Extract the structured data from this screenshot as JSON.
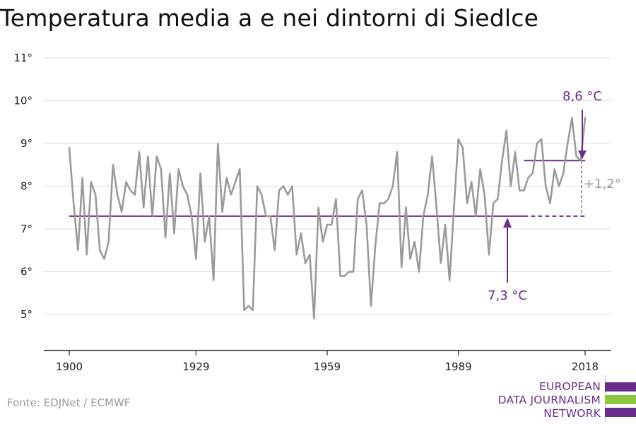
{
  "title": "Temperatura media a e nei dintorni di Siedlce",
  "source": "Fonte: EDJNet / ECMWF",
  "logo": {
    "lines": [
      "EUROPEAN",
      "DATA JOURNALISM",
      "NETWORK"
    ],
    "colors": {
      "purple": "#6b2d8b",
      "green": "#8dc63f"
    }
  },
  "colors": {
    "series": "#9b9b9b",
    "reference": "#6b2d8b",
    "annotation_purple": "#6b2d8b",
    "annotation_gray": "#9b9b9b",
    "grid": "#dddddd",
    "axis": "#222222"
  },
  "chart_data": {
    "type": "line",
    "title": "Temperatura media a e nei dintorni di Siedlce",
    "xlabel": "",
    "ylabel": "",
    "x_ticks": [
      1900,
      1929,
      1959,
      1989,
      2018
    ],
    "y_ticks": [
      5,
      6,
      7,
      8,
      9,
      10,
      11
    ],
    "y_tick_suffix": "°",
    "ylim": [
      4.2,
      11.3
    ],
    "xlim": [
      1900,
      2018
    ],
    "grid": "horizontal",
    "series": [
      {
        "x": [
          1900,
          1901,
          1902,
          1903,
          1904,
          1905,
          1906,
          1907,
          1908,
          1909,
          1910,
          1911,
          1912,
          1913,
          1914,
          1915,
          1916,
          1917,
          1918,
          1919,
          1920,
          1921,
          1922,
          1923,
          1924,
          1925,
          1926,
          1927,
          1928,
          1929,
          1930,
          1931,
          1932,
          1933,
          1934,
          1935,
          1936,
          1937,
          1938,
          1939,
          1940,
          1941,
          1942,
          1943,
          1944,
          1945,
          1946,
          1947,
          1948,
          1949,
          1950,
          1951,
          1952,
          1953,
          1954,
          1955,
          1956,
          1957,
          1958,
          1959,
          1960,
          1961,
          1962,
          1963,
          1964,
          1965,
          1966,
          1967,
          1968,
          1969,
          1970,
          1971,
          1972,
          1973,
          1974,
          1975,
          1976,
          1977,
          1978,
          1979,
          1980,
          1981,
          1982,
          1983,
          1984,
          1985,
          1986,
          1987,
          1988,
          1989,
          1990,
          1991,
          1992,
          1993,
          1994,
          1995,
          1996,
          1997,
          1998,
          1999,
          2000,
          2001,
          2002,
          2003,
          2004,
          2005,
          2006,
          2007,
          2008,
          2009,
          2010,
          2011,
          2012,
          2013,
          2014,
          2015,
          2016,
          2017,
          2018
        ],
        "values": [
          8.9,
          7.6,
          6.5,
          8.2,
          6.4,
          8.1,
          7.8,
          6.5,
          6.3,
          6.7,
          8.5,
          7.8,
          7.4,
          8.1,
          7.9,
          7.8,
          8.8,
          7.5,
          8.7,
          7.3,
          8.7,
          8.4,
          6.8,
          8.3,
          6.9,
          8.4,
          8.0,
          7.8,
          7.3,
          6.3,
          8.3,
          6.7,
          7.3,
          5.8,
          9.0,
          7.4,
          8.2,
          7.8,
          8.1,
          8.4,
          5.1,
          5.2,
          5.1,
          8.0,
          7.8,
          7.3,
          7.3,
          6.5,
          7.9,
          8.0,
          7.8,
          8.0,
          6.4,
          6.9,
          6.2,
          6.4,
          4.9,
          7.5,
          6.7,
          7.1,
          7.1,
          7.7,
          5.9,
          5.9,
          6.0,
          6.0,
          7.7,
          7.9,
          7.1,
          5.2,
          6.6,
          7.6,
          7.6,
          7.7,
          8.0,
          8.8,
          6.1,
          7.5,
          6.3,
          6.7,
          6.0,
          7.3,
          7.8,
          8.7,
          7.5,
          6.2,
          7.1,
          5.8,
          7.5,
          9.1,
          8.9,
          7.6,
          8.1,
          7.3,
          8.4,
          7.8,
          6.4,
          7.6,
          7.7,
          8.6,
          9.3,
          8.0,
          8.8,
          7.9,
          7.9,
          8.2,
          8.3,
          9.0,
          9.1,
          8.0,
          7.6,
          8.4,
          8.0,
          8.3,
          9.0,
          9.6,
          8.7,
          8.6,
          9.6
        ]
      }
    ],
    "reference_lines": [
      {
        "y": 7.3,
        "x_start": 1900,
        "x_end": 2018,
        "dashed_from": 2004
      },
      {
        "y": 8.6,
        "x_start": 2004,
        "x_end": 2018
      }
    ],
    "annotations": {
      "high_label": "8,6 °C",
      "low_label": "7,3 °C",
      "diff_label": "+1,2°"
    }
  }
}
